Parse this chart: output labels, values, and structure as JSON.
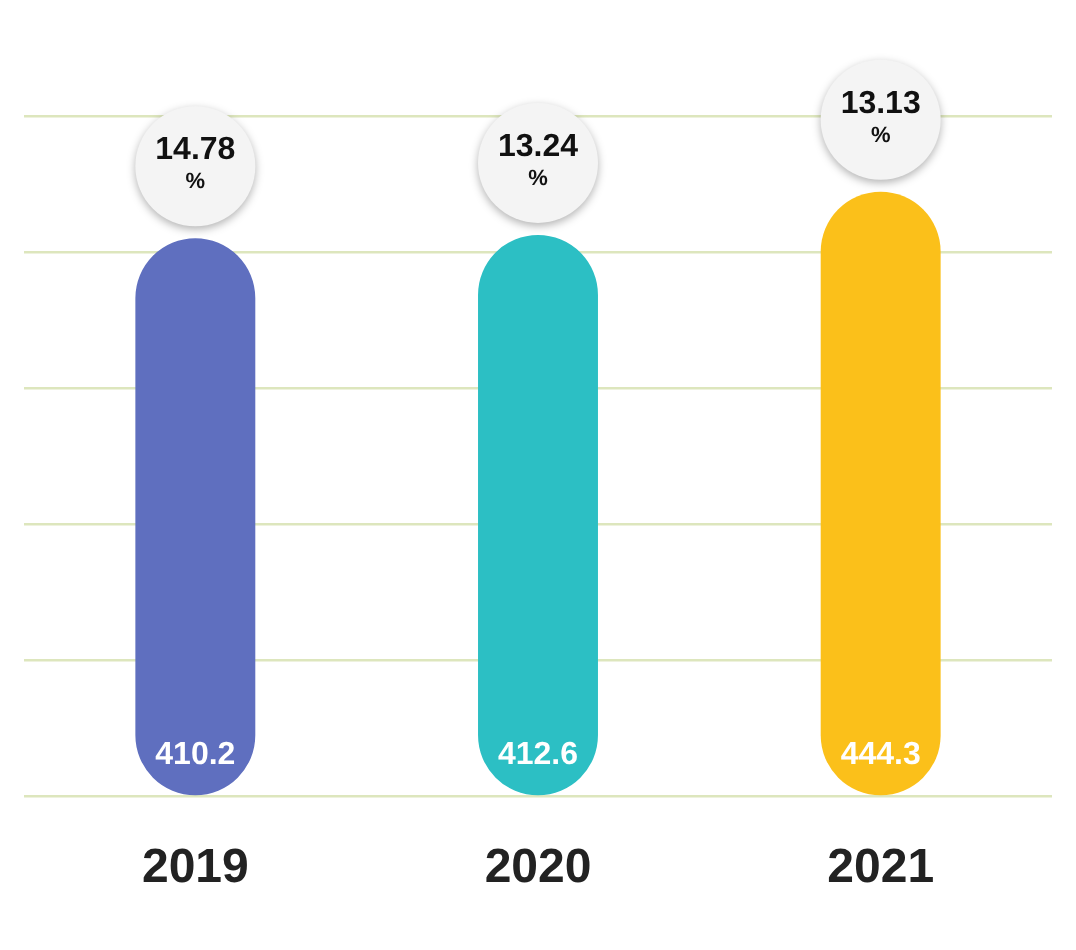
{
  "chart_data": {
    "type": "bar",
    "categories": [
      "2019",
      "2020",
      "2021"
    ],
    "values": [
      410.2,
      412.6,
      444.3
    ],
    "colors": [
      "#5f6fbf",
      "#2cbfc4",
      "#fbc01a"
    ],
    "data_labels": true,
    "annotations": [
      "14.78\n%",
      "13.24\n%",
      "13.13\n%"
    ],
    "ylim": [
      0,
      500
    ],
    "yticks": [
      0,
      100,
      200,
      300,
      400,
      500
    ],
    "grid": "y",
    "tick_labels": "x",
    "legend": false
  }
}
